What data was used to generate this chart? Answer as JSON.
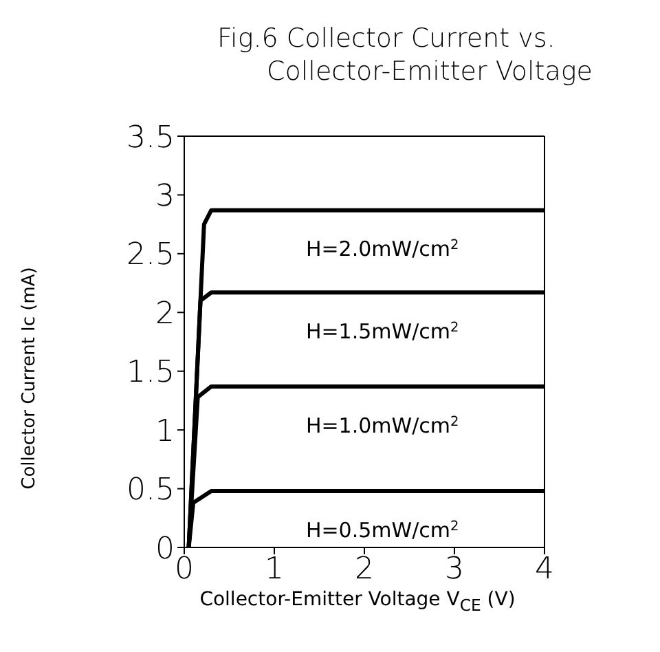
{
  "chart_data": {
    "type": "line",
    "title": "Fig.6 Collector Current vs.\nCollector-Emitter Voltage",
    "xlabel": "Collector-Emitter Voltage V$_{CE}$ (V)",
    "ylabel": "Collector Current Ic (mA)",
    "series": [
      {
        "name": "H=2.0mW/cm$^{2}$",
        "color": "#000000",
        "x": [
          0.05,
          0.22,
          0.3,
          4
        ],
        "values": [
          0,
          2.75,
          2.87,
          2.87
        ]
      },
      {
        "name": "H=1.5mW/cm$^{2}$",
        "color": "#000000",
        "x": [
          0.05,
          0.18,
          0.3,
          4
        ],
        "values": [
          0,
          2.1,
          2.17,
          2.17
        ]
      },
      {
        "name": "H=1.0mW/cm$^{2}$",
        "color": "#000000",
        "x": [
          0.05,
          0.15,
          0.3,
          4
        ],
        "values": [
          0,
          1.28,
          1.37,
          1.37
        ]
      },
      {
        "name": "H=0.5mW/cm$^{2}$",
        "color": "#000000",
        "x": [
          0.05,
          0.1,
          0.3,
          4
        ],
        "values": [
          0,
          0.38,
          0.48,
          0.48
        ]
      }
    ],
    "xlim": [
      0,
      4
    ],
    "xticks": [
      0,
      1,
      2,
      3,
      4
    ],
    "ylim": [
      0,
      3.5
    ],
    "yticks": [
      0,
      0.5,
      1,
      1.5,
      2,
      2.5,
      3,
      3.5
    ],
    "marker": "none",
    "line_style": "solid"
  }
}
